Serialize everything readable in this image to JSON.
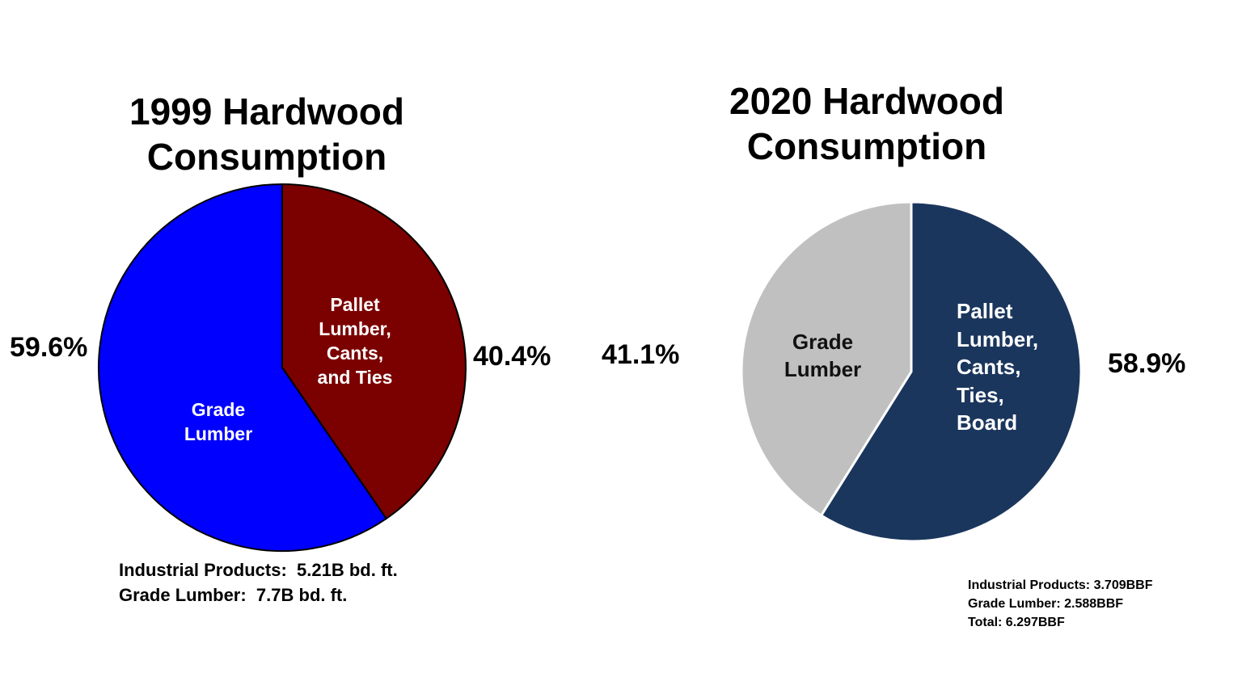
{
  "chart_data": [
    {
      "type": "pie",
      "title": "1999 Hardwood Consumption",
      "title_lines": [
        "1999 Hardwood",
        "Consumption"
      ],
      "slices": [
        {
          "label_lines": [
            "Pallet",
            "Lumber,",
            "Cants,",
            "and Ties"
          ],
          "value": 40.4,
          "pct_label": "40.4%",
          "color": "#7B0000"
        },
        {
          "label_lines": [
            "Grade",
            "Lumber"
          ],
          "value": 59.6,
          "pct_label": "59.6%",
          "color": "#0000FF"
        }
      ],
      "notes": [
        "Industrial Products:  5.21B bd. ft.",
        "Grade Lumber:  7.7B bd. ft."
      ]
    },
    {
      "type": "pie",
      "title": "2020 Hardwood Consumption",
      "title_lines": [
        "2020 Hardwood",
        "Consumption"
      ],
      "slices": [
        {
          "label_lines": [
            "Pallet",
            "Lumber,",
            "Cants,",
            "Ties,",
            "Board"
          ],
          "value": 58.9,
          "pct_label": "58.9%",
          "color": "#1B365D"
        },
        {
          "label_lines": [
            "Grade",
            "Lumber"
          ],
          "value": 41.1,
          "pct_label": "41.1%",
          "color": "#C0C0C0"
        }
      ],
      "notes": [
        "Industrial Products: 3.709BBF",
        "Grade Lumber: 2.588BBF",
        "Total: 6.297BBF"
      ]
    }
  ]
}
